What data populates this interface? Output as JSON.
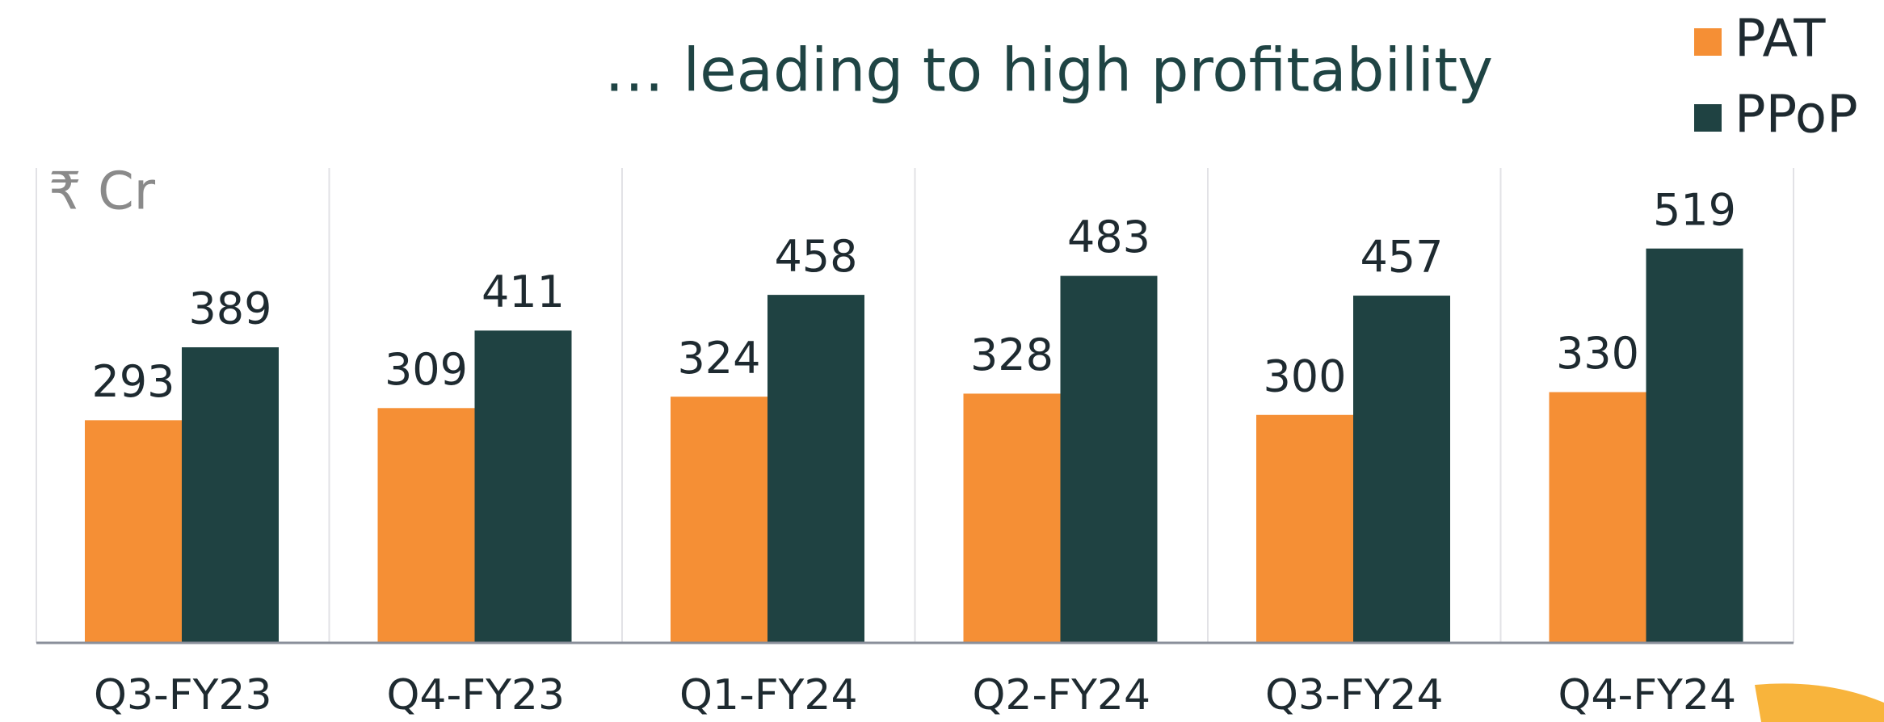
{
  "chart_data": {
    "type": "bar",
    "title": "… leading to high profitability",
    "unit_label": "₹ Cr",
    "categories": [
      "Q3-FY23",
      "Q4-FY23",
      "Q1-FY24",
      "Q2-FY24",
      "Q3-FY24",
      "Q4-FY24"
    ],
    "series": [
      {
        "name": "PAT",
        "color": "#f58f35",
        "values": [
          293,
          309,
          324,
          328,
          300,
          330
        ]
      },
      {
        "name": "PPoP",
        "color": "#1f4242",
        "values": [
          389,
          411,
          458,
          483,
          457,
          519
        ]
      }
    ],
    "ylim": [
      0,
      625
    ],
    "legend": "top-right"
  }
}
